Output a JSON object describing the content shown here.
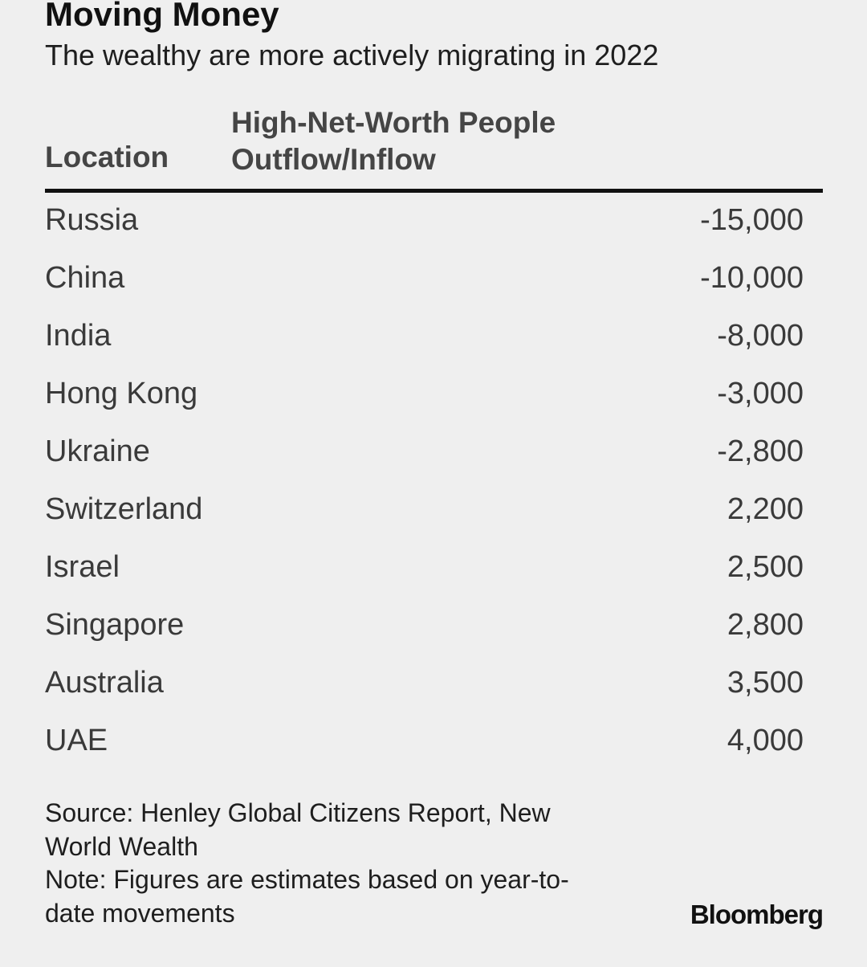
{
  "title": "Moving Money",
  "subtitle": "The wealthy are more actively migrating in 2022",
  "columns": {
    "location": "Location",
    "value_line1": "High-Net-Worth People",
    "value_line2": "Outflow/Inflow"
  },
  "notes": {
    "source_line1": "Source: Henley Global Citizens Report, New",
    "source_line2": "World Wealth",
    "note_line1": "Note: Figures are estimates based on year-to-",
    "note_line2": "date movements"
  },
  "brand": "Bloomberg",
  "chart_data": {
    "type": "table",
    "title": "Moving Money",
    "subtitle": "The wealthy are more actively migrating in 2022",
    "columns": [
      "Location",
      "High-Net-Worth People Outflow/Inflow"
    ],
    "rows": [
      {
        "location": "Russia",
        "value": "-15,000"
      },
      {
        "location": "China",
        "value": "-10,000"
      },
      {
        "location": "India",
        "value": "-8,000"
      },
      {
        "location": "Hong Kong",
        "value": "-3,000"
      },
      {
        "location": "Ukraine",
        "value": "-2,800"
      },
      {
        "location": "Switzerland",
        "value": "2,200"
      },
      {
        "location": "Israel",
        "value": "2,500"
      },
      {
        "location": "Singapore",
        "value": "2,800"
      },
      {
        "location": "Australia",
        "value": "3,500"
      },
      {
        "location": "UAE",
        "value": "4,000"
      }
    ]
  }
}
